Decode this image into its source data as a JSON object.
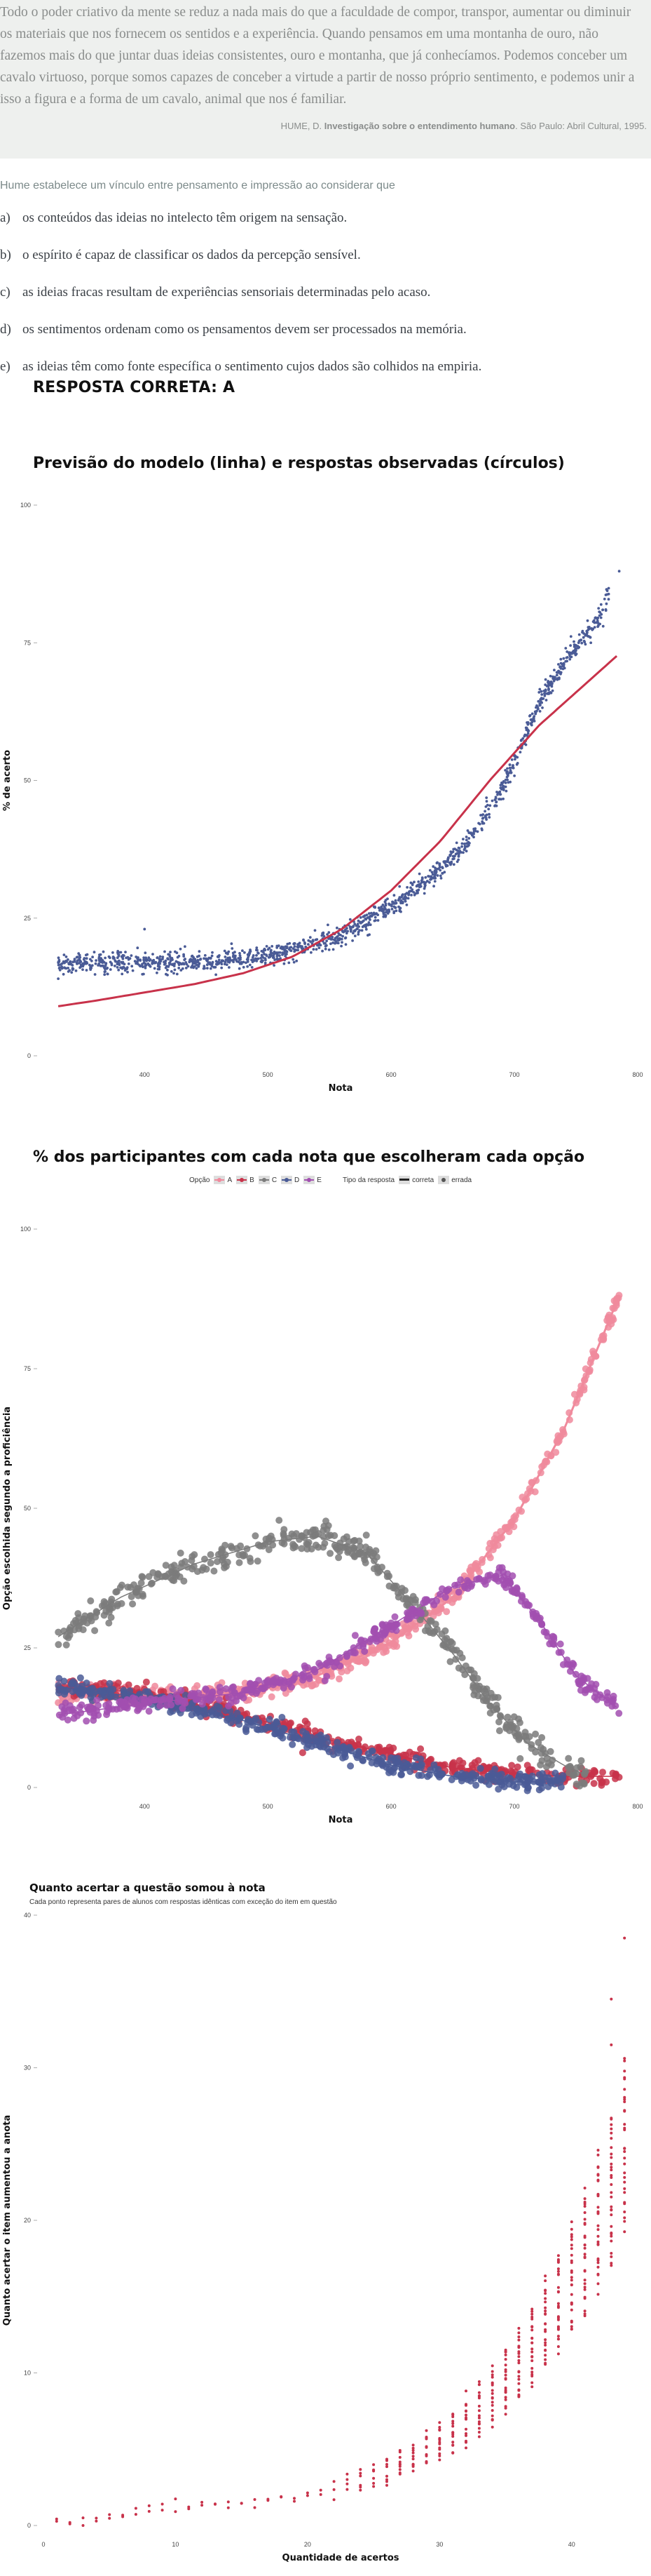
{
  "question": {
    "quote": "Todo o poder criativo da mente se reduz a nada mais do que a faculdade de compor, transpor, aumentar ou diminuir os materiais que nos fornecem os sentidos e a experiência. Quando pensamos em uma montanha de ouro, não fazemos mais do que juntar duas ideias consistentes, ouro e montanha, que já conhecíamos. Podemos conceber um cavalo virtuoso, porque somos capazes de conceber a virtude a partir de nosso próprio sentimento, e podemos unir a isso a figura e a forma de um cavalo, animal que nos é familiar.",
    "citation_author": "HUME, D.",
    "citation_title": "Investigação sobre o entendimento humano",
    "citation_rest": ". São Paulo: Abril Cultural, 1995.",
    "stem": "Hume estabelece um vínculo entre pensamento e impressão ao considerar que",
    "options": [
      {
        "letter": "a)",
        "text": "os conteúdos das ideias no intelecto têm origem na sensação."
      },
      {
        "letter": "b)",
        "text": "o espírito é capaz de classificar os dados da percepção sensível."
      },
      {
        "letter": "c)",
        "text": "as ideias fracas resultam de experiências sensoriais determinadas pelo acaso."
      },
      {
        "letter": "d)",
        "text": "os sentimentos ordenam como os pensamentos devem ser processados na memória."
      },
      {
        "letter": "e)",
        "text": "as ideias têm como fonte específica o sentimento cujos dados são colhidos na empiria."
      }
    ],
    "answer": "RESPOSTA CORRETA: A"
  },
  "chart_data": [
    {
      "type": "scatter",
      "title": "Previsão do modelo (linha) e respostas observadas (círculos)",
      "xlabel": "Nota",
      "ylabel": "% de acerto",
      "xlim": [
        318,
        800
      ],
      "ylim": [
        0,
        100
      ],
      "xticks": [
        400,
        500,
        600,
        700,
        800
      ],
      "yticks": [
        0,
        25,
        50,
        75,
        100
      ],
      "grid": false,
      "model_line": {
        "color": "#c8324a",
        "x": [
          330,
          360,
          400,
          440,
          480,
          520,
          560,
          600,
          640,
          680,
          720,
          760,
          785
        ],
        "y": [
          9,
          10,
          11.5,
          13,
          15,
          18,
          23,
          30,
          39,
          50,
          60,
          68,
          73
        ]
      },
      "observed": {
        "color": "#4a5b96",
        "x": [
          330,
          360,
          400,
          440,
          480,
          520,
          560,
          600,
          630,
          660,
          690,
          720,
          745,
          765,
          785
        ],
        "y": [
          17,
          17,
          17,
          17,
          17.5,
          19,
          22,
          27,
          32,
          38,
          48,
          64,
          73,
          78,
          88
        ]
      }
    },
    {
      "type": "scatter",
      "title": "% dos participantes com cada nota que escolheram cada opção",
      "xlabel": "Nota",
      "ylabel": "Opção escolhida segundo a proficiência",
      "xlim": [
        318,
        800
      ],
      "ylim": [
        0,
        100
      ],
      "xticks": [
        400,
        500,
        600,
        700,
        800
      ],
      "yticks": [
        0,
        25,
        50,
        75,
        100
      ],
      "legend": {
        "option_title": "Opção",
        "options": [
          "A",
          "B",
          "C",
          "D",
          "E"
        ],
        "type_title": "Tipo da resposta",
        "types": [
          "correta",
          "errada"
        ],
        "placement": "top"
      },
      "series": [
        {
          "name": "A",
          "color": "#f08a9c",
          "x": [
            330,
            400,
            480,
            540,
            600,
            650,
            700,
            740,
            785
          ],
          "y": [
            17,
            16.5,
            17,
            20,
            26,
            34,
            48,
            64,
            88
          ]
        },
        {
          "name": "B",
          "color": "#c8324a",
          "x": [
            330,
            400,
            480,
            540,
            600,
            650,
            700,
            740,
            785
          ],
          "y": [
            18,
            17,
            13,
            9,
            6,
            3.5,
            2.5,
            2,
            2
          ]
        },
        {
          "name": "C",
          "color": "#7b7b7b",
          "x": [
            330,
            380,
            440,
            500,
            540,
            580,
            620,
            650,
            680,
            710,
            740,
            760
          ],
          "y": [
            27,
            34,
            40,
            44,
            45,
            42,
            32,
            24,
            15,
            8,
            4,
            2
          ]
        },
        {
          "name": "D",
          "color": "#4a5b96",
          "x": [
            330,
            400,
            480,
            540,
            600,
            650,
            700,
            740
          ],
          "y": [
            18,
            16,
            12,
            8,
            4,
            2,
            1,
            1
          ]
        },
        {
          "name": "E",
          "color": "#a24fb0",
          "x": [
            330,
            400,
            480,
            540,
            600,
            650,
            690,
            720,
            750,
            785
          ],
          "y": [
            13,
            15,
            17,
            21,
            29,
            36,
            38,
            30,
            20,
            14
          ]
        }
      ]
    },
    {
      "type": "scatter",
      "title": "Quanto acertar a questão somou à nota",
      "subtitle": "Cada ponto representa pares de alunos com respostas idênticas com exceção do item em questão",
      "xlabel": "Quantidade de acertos",
      "ylabel": "Quanto acertar o item aumentou a anota",
      "xlim": [
        0,
        45
      ],
      "ylim": [
        0,
        40
      ],
      "xticks": [
        0,
        10,
        20,
        30,
        40
      ],
      "yticks": [
        0,
        10,
        20,
        30,
        40
      ],
      "color": "#c8324a",
      "x": [
        1,
        2,
        3,
        4,
        5,
        6,
        7,
        8,
        9,
        10,
        11,
        12,
        13,
        14,
        15,
        16,
        17,
        18,
        19,
        20,
        21,
        22,
        23,
        24,
        25,
        26,
        27,
        28,
        29,
        30,
        31,
        32,
        33,
        34,
        35,
        36,
        37,
        38,
        39,
        40,
        41,
        42,
        43,
        44
      ],
      "y": [
        0.2,
        0.3,
        0.4,
        0.5,
        0.6,
        0.7,
        0.8,
        0.9,
        1.0,
        1.1,
        1.2,
        1.3,
        1.3,
        1.4,
        1.5,
        1.6,
        1.7,
        1.8,
        1.9,
        2.1,
        2.3,
        2.5,
        2.7,
        3.0,
        3.3,
        3.6,
        4.0,
        4.4,
        4.9,
        5.5,
        6.1,
        6.8,
        7.6,
        8.5,
        9.5,
        10.5,
        11.8,
        13.2,
        14.6,
        16.2,
        18.0,
        20.0,
        22.0,
        25.0
      ]
    }
  ]
}
